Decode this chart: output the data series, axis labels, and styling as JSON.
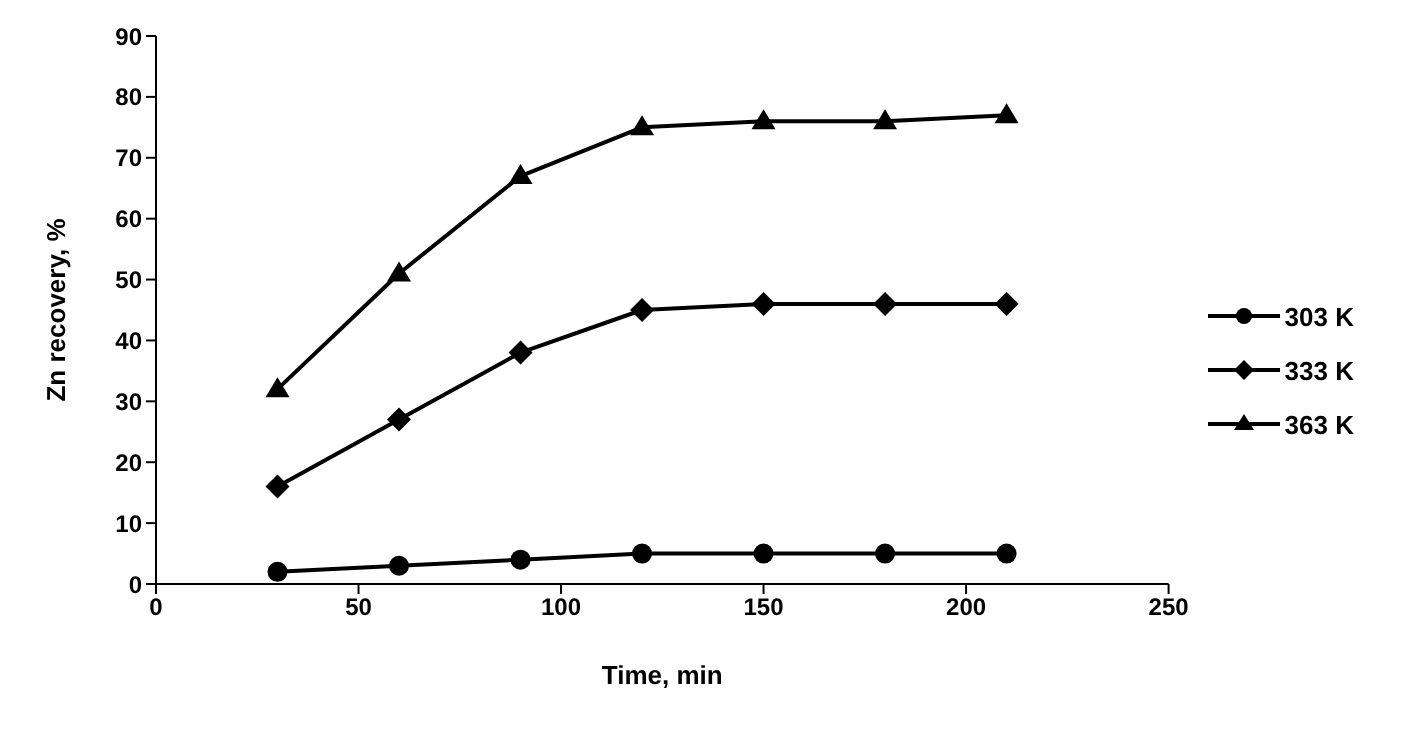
{
  "chart_data": {
    "type": "line",
    "xlabel": "Time, min",
    "ylabel": "Zn recovery, %",
    "x": [
      30,
      60,
      90,
      120,
      150,
      180,
      210
    ],
    "series": [
      {
        "name": "303 K",
        "color": "#000000",
        "marker": "circle",
        "values": [
          2,
          3,
          4,
          5,
          5,
          5,
          5
        ]
      },
      {
        "name": "333 K",
        "color": "#000000",
        "marker": "diamond",
        "values": [
          16,
          27,
          38,
          45,
          46,
          46,
          46
        ]
      },
      {
        "name": "363 K",
        "color": "#000000",
        "marker": "triangle",
        "values": [
          32,
          51,
          67,
          75,
          76,
          76,
          77
        ]
      }
    ],
    "xlim": [
      0,
      250
    ],
    "xticks": [
      0,
      50,
      100,
      150,
      200,
      250
    ],
    "ylim": [
      0,
      90
    ],
    "yticks": [
      0,
      10,
      20,
      30,
      40,
      50,
      60,
      70,
      80,
      90
    ],
    "grid": false,
    "legend": "right",
    "line_style": "solid"
  }
}
